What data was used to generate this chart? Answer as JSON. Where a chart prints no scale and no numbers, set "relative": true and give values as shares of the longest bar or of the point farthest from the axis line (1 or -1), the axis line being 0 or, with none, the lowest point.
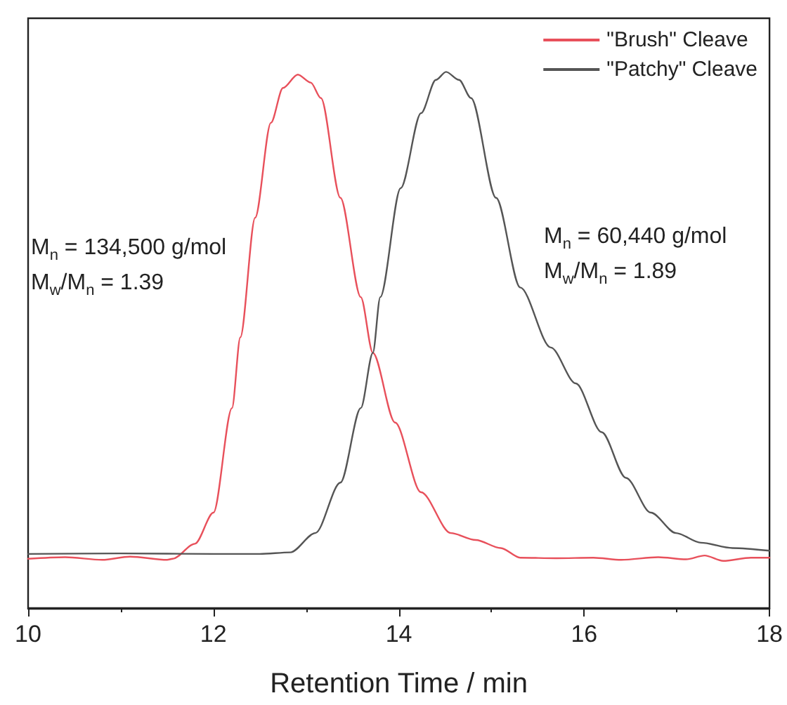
{
  "chart_data": {
    "type": "line",
    "relative": true,
    "xlabel": "Retention Time / min",
    "xlim": [
      10,
      18
    ],
    "xticks": [
      10,
      12,
      14,
      16,
      18
    ],
    "grid": false,
    "legend": "top right",
    "marker": "none",
    "line_style": "solid",
    "annotations": [
      "M$_{n}$ = 134,500 g/mol",
      "M$_{w}$/M$_{n}$ = 1.39",
      "M$_{n}$ = 60,440 g/mol",
      "M$_{w}$/M$_{n}$ = 1.89"
    ],
    "series": [
      {
        "name": "\"Brush\" Cleave",
        "color": "#e8505b",
        "x": [
          10,
          10.4,
          10.8,
          11.1,
          11.5,
          11.56,
          11.8,
          12.0,
          12.2,
          12.29,
          12.45,
          12.62,
          12.75,
          12.91,
          13.05,
          13.16,
          13.37,
          13.59,
          13.72,
          13.96,
          14.24,
          14.56,
          14.83,
          15.1,
          15.31,
          15.7,
          16.1,
          16.4,
          16.8,
          17.1,
          17.3,
          17.5,
          17.8,
          18
        ],
        "values": [
          0.092,
          0.095,
          0.09,
          0.096,
          0.09,
          0.092,
          0.12,
          0.178,
          0.373,
          0.505,
          0.728,
          0.905,
          0.97,
          0.995,
          0.98,
          0.951,
          0.765,
          0.58,
          0.476,
          0.346,
          0.216,
          0.14,
          0.127,
          0.112,
          0.094,
          0.093,
          0.094,
          0.09,
          0.095,
          0.091,
          0.098,
          0.088,
          0.094,
          0.094
        ]
      },
      {
        "name": "\"Patchy\" Cleave",
        "color": "#555555",
        "x": [
          10,
          11,
          12,
          12.5,
          12.83,
          13.1,
          13.37,
          13.59,
          13.72,
          13.8,
          14.02,
          14.24,
          14.4,
          14.51,
          14.65,
          14.78,
          15.05,
          15.31,
          15.64,
          15.91,
          16.19,
          16.45,
          16.72,
          16.99,
          17.26,
          17.6,
          18
        ],
        "values": [
          0.101,
          0.102,
          0.101,
          0.101,
          0.104,
          0.14,
          0.234,
          0.373,
          0.476,
          0.58,
          0.783,
          0.923,
          0.985,
          1,
          0.985,
          0.951,
          0.765,
          0.598,
          0.486,
          0.419,
          0.328,
          0.243,
          0.178,
          0.14,
          0.122,
          0.112,
          0.107
        ]
      }
    ]
  }
}
